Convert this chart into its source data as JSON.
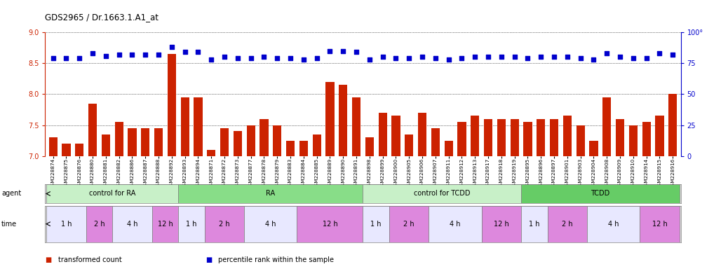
{
  "title": "GDS2965 / Dr.1663.1.A1_at",
  "samples": [
    "GSM228874",
    "GSM228875",
    "GSM228876",
    "GSM228880",
    "GSM228881",
    "GSM228882",
    "GSM228886",
    "GSM228887",
    "GSM228888",
    "GSM228892",
    "GSM228893",
    "GSM228894",
    "GSM228871",
    "GSM228872",
    "GSM228873",
    "GSM228877",
    "GSM228878",
    "GSM228879",
    "GSM228883",
    "GSM228884",
    "GSM228885",
    "GSM228889",
    "GSM228890",
    "GSM228891",
    "GSM228898",
    "GSM228899",
    "GSM228900",
    "GSM228905",
    "GSM228906",
    "GSM228907",
    "GSM228911",
    "GSM228912",
    "GSM228913",
    "GSM228917",
    "GSM228918",
    "GSM228919",
    "GSM228895",
    "GSM228896",
    "GSM228897",
    "GSM228901",
    "GSM228903",
    "GSM228904",
    "GSM228908",
    "GSM228909",
    "GSM228910",
    "GSM228914",
    "GSM228915",
    "GSM228916"
  ],
  "red_values": [
    7.3,
    7.2,
    7.2,
    7.85,
    7.35,
    7.55,
    7.45,
    7.45,
    7.45,
    8.65,
    7.95,
    7.95,
    7.1,
    7.45,
    7.4,
    7.5,
    7.6,
    7.5,
    7.25,
    7.25,
    7.35,
    8.2,
    8.15,
    7.95,
    7.3,
    7.7,
    7.65,
    7.35,
    7.7,
    7.45,
    7.25,
    7.55,
    7.65,
    7.6,
    7.6,
    7.6,
    7.55,
    7.6,
    7.6,
    7.65,
    7.5,
    7.25,
    7.95,
    7.6,
    7.5,
    7.55,
    7.65,
    8.0
  ],
  "blue_values": [
    79,
    79,
    79,
    83,
    81,
    82,
    82,
    82,
    82,
    88,
    84,
    84,
    78,
    80,
    79,
    79,
    80,
    79,
    79,
    78,
    79,
    85,
    85,
    84,
    78,
    80,
    79,
    79,
    80,
    79,
    78,
    79,
    80,
    80,
    80,
    80,
    79,
    80,
    80,
    80,
    79,
    78,
    83,
    80,
    79,
    79,
    83,
    82
  ],
  "agent_groups": [
    {
      "label": "control for RA",
      "start": 0,
      "end": 10,
      "color": "#c8f0c8"
    },
    {
      "label": "RA",
      "start": 10,
      "end": 24,
      "color": "#88dd88"
    },
    {
      "label": "control for TCDD",
      "start": 24,
      "end": 36,
      "color": "#c8f0c8"
    },
    {
      "label": "TCDD",
      "start": 36,
      "end": 48,
      "color": "#66cc66"
    }
  ],
  "time_groups": [
    {
      "label": "1 h",
      "start": 0,
      "end": 3,
      "color": "#e8e8ff"
    },
    {
      "label": "2 h",
      "start": 3,
      "end": 5,
      "color": "#dd88dd"
    },
    {
      "label": "4 h",
      "start": 5,
      "end": 8,
      "color": "#e8e8ff"
    },
    {
      "label": "12 h",
      "start": 8,
      "end": 10,
      "color": "#dd88dd"
    },
    {
      "label": "1 h",
      "start": 10,
      "end": 12,
      "color": "#e8e8ff"
    },
    {
      "label": "2 h",
      "start": 12,
      "end": 15,
      "color": "#dd88dd"
    },
    {
      "label": "4 h",
      "start": 15,
      "end": 19,
      "color": "#e8e8ff"
    },
    {
      "label": "12 h",
      "start": 19,
      "end": 24,
      "color": "#dd88dd"
    },
    {
      "label": "1 h",
      "start": 24,
      "end": 26,
      "color": "#e8e8ff"
    },
    {
      "label": "2 h",
      "start": 26,
      "end": 29,
      "color": "#dd88dd"
    },
    {
      "label": "4 h",
      "start": 29,
      "end": 33,
      "color": "#e8e8ff"
    },
    {
      "label": "12 h",
      "start": 33,
      "end": 36,
      "color": "#dd88dd"
    },
    {
      "label": "1 h",
      "start": 36,
      "end": 38,
      "color": "#e8e8ff"
    },
    {
      "label": "2 h",
      "start": 38,
      "end": 41,
      "color": "#dd88dd"
    },
    {
      "label": "4 h",
      "start": 41,
      "end": 45,
      "color": "#e8e8ff"
    },
    {
      "label": "12 h",
      "start": 45,
      "end": 48,
      "color": "#dd88dd"
    }
  ],
  "ylim_left": [
    7.0,
    9.0
  ],
  "ylim_right": [
    0,
    100
  ],
  "yticks_left": [
    7.0,
    7.5,
    8.0,
    8.5,
    9.0
  ],
  "yticks_right": [
    0,
    25,
    50,
    75,
    100
  ],
  "bar_color": "#cc2200",
  "dot_color": "#0000cc",
  "background_color": "#ffffff",
  "legend_items": [
    {
      "label": "transformed count",
      "color": "#cc2200"
    },
    {
      "label": "percentile rank within the sample",
      "color": "#0000cc"
    }
  ]
}
